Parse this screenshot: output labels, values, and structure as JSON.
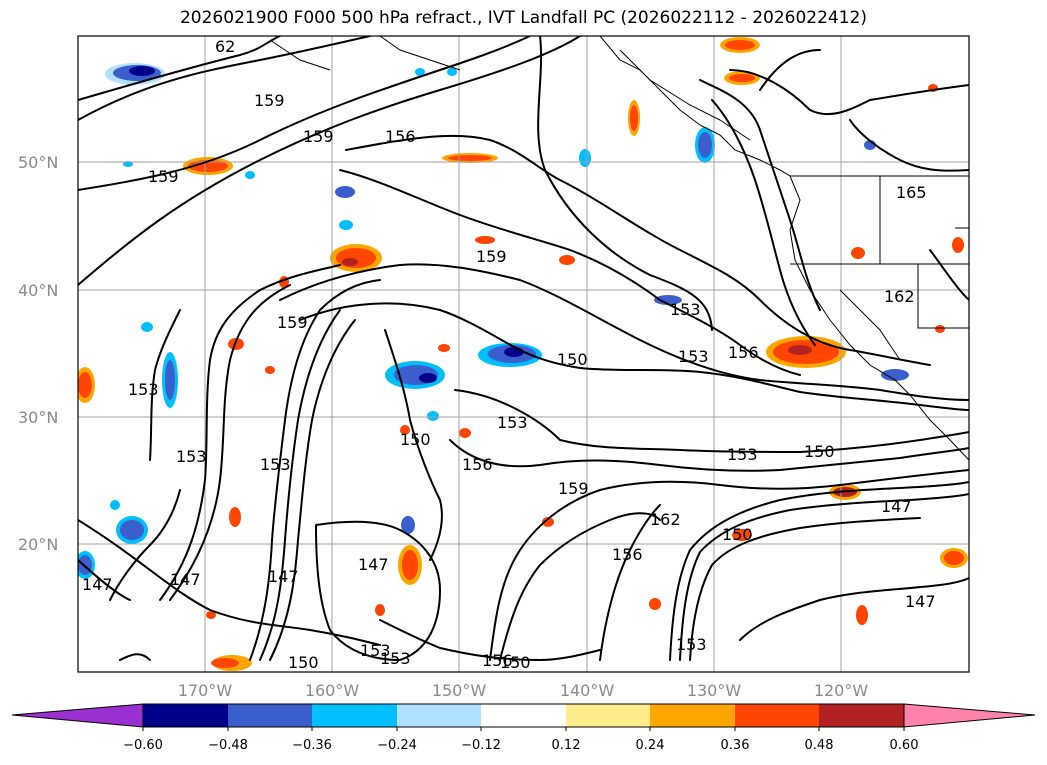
{
  "title": "2026021900 F000 500 hPa refract., IVT Landfall PC (2026022112 - 2026022412)",
  "axes": {
    "lat_ticks": [
      "50°N",
      "40°N",
      "30°N",
      "20°N"
    ],
    "lon_ticks": [
      "170°W",
      "160°W",
      "150°W",
      "140°W",
      "130°W",
      "120°W"
    ]
  },
  "contour_labels": [
    "62",
    "159",
    "159",
    "156",
    "159",
    "165",
    "159",
    "159",
    "153",
    "156",
    "153",
    "150",
    "153",
    "153",
    "156",
    "150",
    "153",
    "150",
    "153",
    "159",
    "162",
    "150",
    "147",
    "147",
    "156",
    "147",
    "147",
    "147",
    "150",
    "150",
    "153",
    "156",
    "153",
    "153",
    "153",
    "162",
    "147"
  ],
  "colorbar": {
    "colors": [
      "#9b30d0",
      "#00008b",
      "#3a5fcd",
      "#00bfff",
      "#b0e2ff",
      "#ffffff",
      "#ffec8b",
      "#ffa500",
      "#ff4500",
      "#b22222",
      "#ff82ab"
    ],
    "tick_labels": [
      "−0.60",
      "−0.48",
      "−0.36",
      "−0.24",
      "−0.12",
      "0.12",
      "0.24",
      "0.36",
      "0.48",
      "0.60"
    ]
  }
}
